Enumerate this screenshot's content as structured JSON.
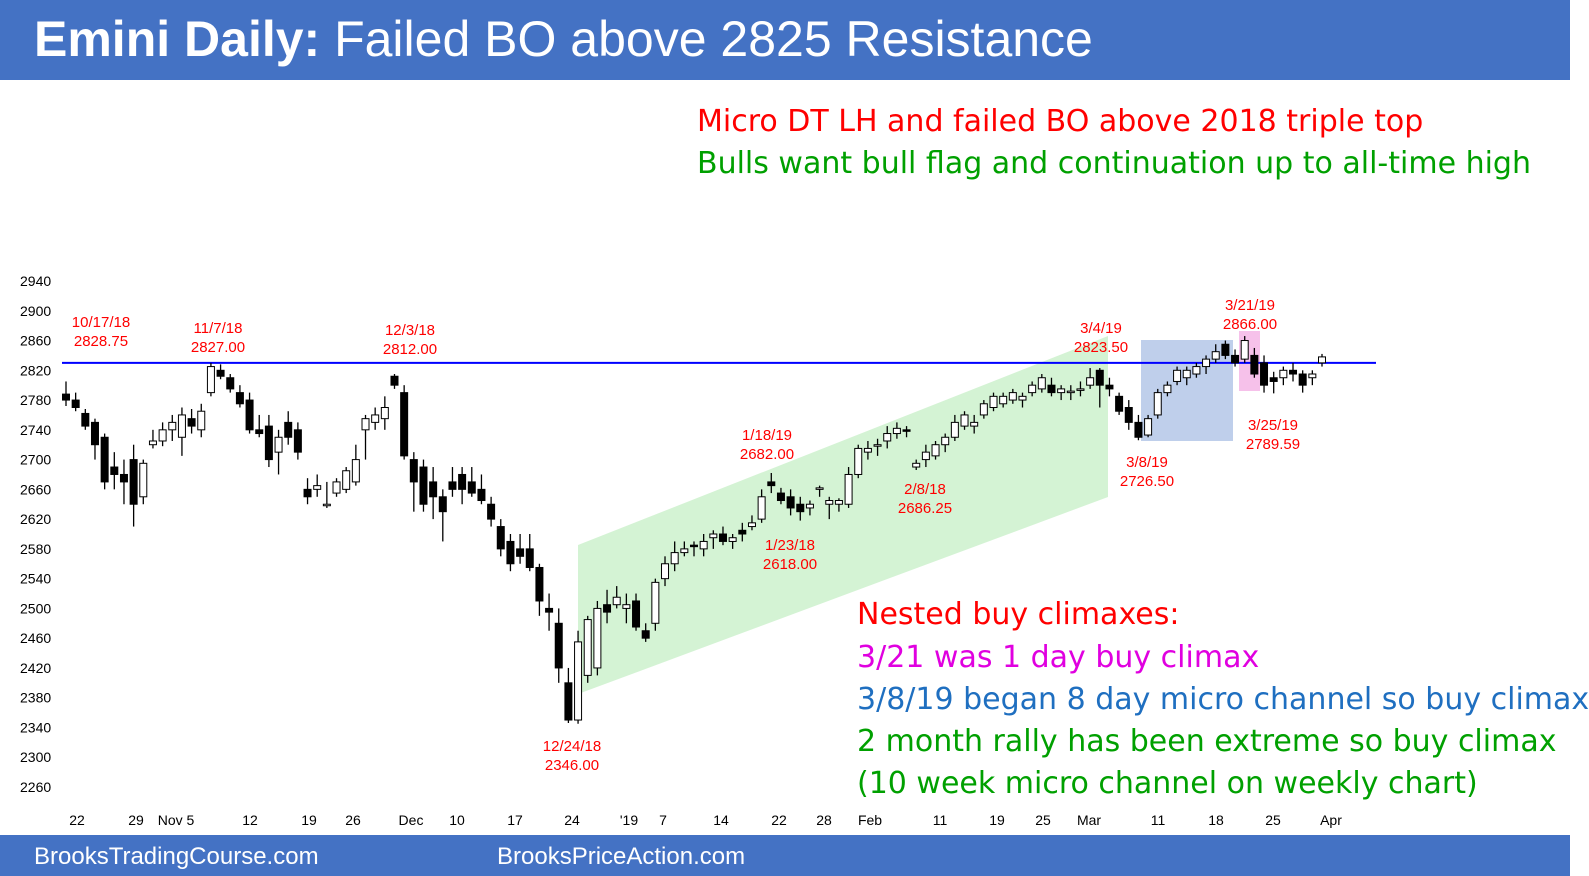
{
  "header": {
    "title_bold": "Emini Daily:",
    "title_rest": " Failed BO above 2825 Resistance"
  },
  "footer": {
    "link1": "BrooksTradingCourse.com",
    "link2": "BrooksPriceAction.com"
  },
  "colors": {
    "header_bg": "#4472c4",
    "resistance_line": "#0000ff",
    "bull_channel": "#c6efc6",
    "micro_channel_box": "#b4c7e7",
    "climax_box": "#f4b6e6",
    "red": "#ff0000",
    "green": "#00a000",
    "magenta": "#e000e0",
    "blue": "#1f6fc0"
  },
  "top_notes": {
    "line1": "Micro DT LH and failed BO above 2018 triple top",
    "line2": "Bulls want bull flag and continuation up to all-time high"
  },
  "bottom_notes": {
    "heading": "Nested buy climaxes:",
    "line1": "3/21 was 1 day buy climax",
    "line2": "3/8/19 began 8 day micro channel so buy climax",
    "line3": "2 month rally has been extreme so buy climax",
    "line4": "(10 week micro channel on weekly chart)"
  },
  "chart_data": {
    "type": "candlestick",
    "ylim": [
      2260,
      2940
    ],
    "yticks": [
      2260,
      2300,
      2340,
      2380,
      2420,
      2460,
      2500,
      2540,
      2580,
      2620,
      2660,
      2700,
      2740,
      2780,
      2820,
      2860,
      2900,
      2940
    ],
    "xticks": [
      "22",
      "29",
      "Nov 5",
      "12",
      "19",
      "26",
      "Dec",
      "10",
      "17",
      "24",
      "'19",
      "7",
      "14",
      "22",
      "28",
      "Feb",
      "11",
      "19",
      "25",
      "Mar",
      "11",
      "18",
      "25",
      "Apr"
    ],
    "resistance": 2830,
    "candles": [
      [
        2788,
        2805,
        2772,
        2780
      ],
      [
        2780,
        2790,
        2765,
        2770
      ],
      [
        2762,
        2768,
        2740,
        2745
      ],
      [
        2750,
        2755,
        2700,
        2720
      ],
      [
        2730,
        2735,
        2660,
        2670
      ],
      [
        2690,
        2710,
        2660,
        2680
      ],
      [
        2680,
        2700,
        2640,
        2670
      ],
      [
        2700,
        2720,
        2610,
        2640
      ],
      [
        2650,
        2700,
        2640,
        2695
      ],
      [
        2720,
        2740,
        2715,
        2725
      ],
      [
        2725,
        2750,
        2718,
        2740
      ],
      [
        2740,
        2760,
        2725,
        2750
      ],
      [
        2730,
        2770,
        2705,
        2760
      ],
      [
        2755,
        2768,
        2735,
        2745
      ],
      [
        2740,
        2775,
        2730,
        2765
      ],
      [
        2790,
        2830,
        2785,
        2825
      ],
      [
        2820,
        2828,
        2808,
        2812
      ],
      [
        2810,
        2815,
        2790,
        2795
      ],
      [
        2790,
        2800,
        2770,
        2775
      ],
      [
        2780,
        2790,
        2735,
        2740
      ],
      [
        2740,
        2760,
        2730,
        2735
      ],
      [
        2745,
        2760,
        2690,
        2700
      ],
      [
        2710,
        2740,
        2680,
        2730
      ],
      [
        2750,
        2765,
        2720,
        2730
      ],
      [
        2740,
        2750,
        2700,
        2710
      ],
      [
        2660,
        2675,
        2640,
        2650
      ],
      [
        2660,
        2680,
        2650,
        2665
      ],
      [
        2640,
        2670,
        2635,
        2640
      ],
      [
        2655,
        2675,
        2650,
        2670
      ],
      [
        2660,
        2690,
        2655,
        2685
      ],
      [
        2670,
        2720,
        2665,
        2700
      ],
      [
        2740,
        2760,
        2700,
        2755
      ],
      [
        2750,
        2770,
        2740,
        2760
      ],
      [
        2755,
        2785,
        2740,
        2770
      ],
      [
        2812,
        2815,
        2795,
        2800
      ],
      [
        2790,
        2800,
        2700,
        2705
      ],
      [
        2700,
        2710,
        2630,
        2670
      ],
      [
        2690,
        2700,
        2630,
        2640
      ],
      [
        2670,
        2690,
        2620,
        2650
      ],
      [
        2650,
        2660,
        2590,
        2630
      ],
      [
        2670,
        2690,
        2650,
        2660
      ],
      [
        2680,
        2690,
        2640,
        2660
      ],
      [
        2670,
        2690,
        2650,
        2655
      ],
      [
        2660,
        2680,
        2640,
        2645
      ],
      [
        2640,
        2650,
        2610,
        2620
      ],
      [
        2610,
        2620,
        2570,
        2580
      ],
      [
        2590,
        2600,
        2550,
        2560
      ],
      [
        2580,
        2600,
        2560,
        2570
      ],
      [
        2580,
        2600,
        2550,
        2555
      ],
      [
        2555,
        2560,
        2490,
        2510
      ],
      [
        2500,
        2520,
        2470,
        2495
      ],
      [
        2480,
        2500,
        2400,
        2420
      ],
      [
        2400,
        2420,
        2346,
        2350
      ],
      [
        2350,
        2470,
        2345,
        2455
      ],
      [
        2410,
        2490,
        2400,
        2485
      ],
      [
        2420,
        2510,
        2410,
        2500
      ],
      [
        2505,
        2525,
        2480,
        2495
      ],
      [
        2505,
        2530,
        2500,
        2515
      ],
      [
        2500,
        2520,
        2480,
        2505
      ],
      [
        2510,
        2520,
        2470,
        2475
      ],
      [
        2470,
        2480,
        2455,
        2460
      ],
      [
        2480,
        2540,
        2470,
        2535
      ],
      [
        2540,
        2570,
        2530,
        2560
      ],
      [
        2560,
        2590,
        2550,
        2575
      ],
      [
        2575,
        2590,
        2570,
        2580
      ],
      [
        2585,
        2590,
        2570,
        2583
      ],
      [
        2580,
        2600,
        2570,
        2590
      ],
      [
        2595,
        2605,
        2580,
        2600
      ],
      [
        2600,
        2610,
        2585,
        2590
      ],
      [
        2590,
        2600,
        2580,
        2595
      ],
      [
        2605,
        2615,
        2590,
        2600
      ],
      [
        2610,
        2625,
        2605,
        2615
      ],
      [
        2620,
        2660,
        2615,
        2650
      ],
      [
        2670,
        2682,
        2655,
        2665
      ],
      [
        2655,
        2662,
        2640,
        2645
      ],
      [
        2650,
        2660,
        2625,
        2635
      ],
      [
        2640,
        2650,
        2618,
        2630
      ],
      [
        2635,
        2645,
        2625,
        2640
      ],
      [
        2660,
        2665,
        2650,
        2662
      ],
      [
        2640,
        2650,
        2620,
        2645
      ],
      [
        2640,
        2648,
        2630,
        2645
      ],
      [
        2640,
        2690,
        2635,
        2680
      ],
      [
        2680,
        2720,
        2675,
        2715
      ],
      [
        2710,
        2725,
        2700,
        2715
      ],
      [
        2718,
        2728,
        2705,
        2720
      ],
      [
        2725,
        2745,
        2715,
        2735
      ],
      [
        2735,
        2750,
        2728,
        2742
      ],
      [
        2740,
        2745,
        2730,
        2738
      ],
      [
        2690,
        2700,
        2686,
        2695
      ],
      [
        2700,
        2720,
        2690,
        2710
      ],
      [
        2705,
        2725,
        2700,
        2720
      ],
      [
        2720,
        2735,
        2710,
        2730
      ],
      [
        2730,
        2760,
        2725,
        2750
      ],
      [
        2745,
        2765,
        2740,
        2760
      ],
      [
        2745,
        2760,
        2735,
        2750
      ],
      [
        2760,
        2780,
        2755,
        2775
      ],
      [
        2770,
        2790,
        2765,
        2785
      ],
      [
        2775,
        2790,
        2770,
        2785
      ],
      [
        2780,
        2795,
        2775,
        2790
      ],
      [
        2780,
        2790,
        2770,
        2785
      ],
      [
        2790,
        2805,
        2785,
        2800
      ],
      [
        2795,
        2815,
        2790,
        2810
      ],
      [
        2800,
        2810,
        2785,
        2790
      ],
      [
        2790,
        2800,
        2780,
        2795
      ],
      [
        2790,
        2800,
        2780,
        2792
      ],
      [
        2795,
        2805,
        2785,
        2795
      ],
      [
        2800,
        2823,
        2795,
        2810
      ],
      [
        2820,
        2823,
        2770,
        2800
      ],
      [
        2800,
        2810,
        2785,
        2795
      ],
      [
        2785,
        2790,
        2760,
        2765
      ],
      [
        2770,
        2780,
        2740,
        2750
      ],
      [
        2750,
        2760,
        2726,
        2730
      ],
      [
        2733,
        2760,
        2730,
        2755
      ],
      [
        2760,
        2795,
        2755,
        2790
      ],
      [
        2790,
        2805,
        2785,
        2800
      ],
      [
        2805,
        2825,
        2800,
        2820
      ],
      [
        2810,
        2825,
        2800,
        2820
      ],
      [
        2815,
        2830,
        2810,
        2825
      ],
      [
        2825,
        2840,
        2815,
        2835
      ],
      [
        2835,
        2855,
        2830,
        2845
      ],
      [
        2855,
        2860,
        2835,
        2840
      ],
      [
        2840,
        2848,
        2825,
        2830
      ],
      [
        2835,
        2866,
        2830,
        2860
      ],
      [
        2840,
        2850,
        2810,
        2815
      ],
      [
        2830,
        2840,
        2790,
        2800
      ],
      [
        2810,
        2818,
        2789,
        2805
      ],
      [
        2810,
        2825,
        2800,
        2820
      ],
      [
        2820,
        2830,
        2805,
        2815
      ],
      [
        2815,
        2820,
        2790,
        2800
      ],
      [
        2810,
        2820,
        2800,
        2815
      ],
      [
        2830,
        2842,
        2825,
        2838
      ]
    ],
    "swing_labels": [
      {
        "date": "10/17/18",
        "price": "2828.75"
      },
      {
        "date": "11/7/18",
        "price": "2827.00"
      },
      {
        "date": "12/3/18",
        "price": "2812.00"
      },
      {
        "date": "1/18/19",
        "price": "2682.00"
      },
      {
        "date": "1/23/18",
        "price": "2618.00"
      },
      {
        "date": "2/8/18",
        "price": "2686.25"
      },
      {
        "date": "3/4/19",
        "price": "2823.50"
      },
      {
        "date": "3/21/19",
        "price": "2866.00"
      },
      {
        "date": "3/25/19",
        "price": "2789.59"
      },
      {
        "date": "3/8/19",
        "price": "2726.50"
      },
      {
        "date": "12/24/18",
        "price": "2346.00"
      }
    ]
  }
}
